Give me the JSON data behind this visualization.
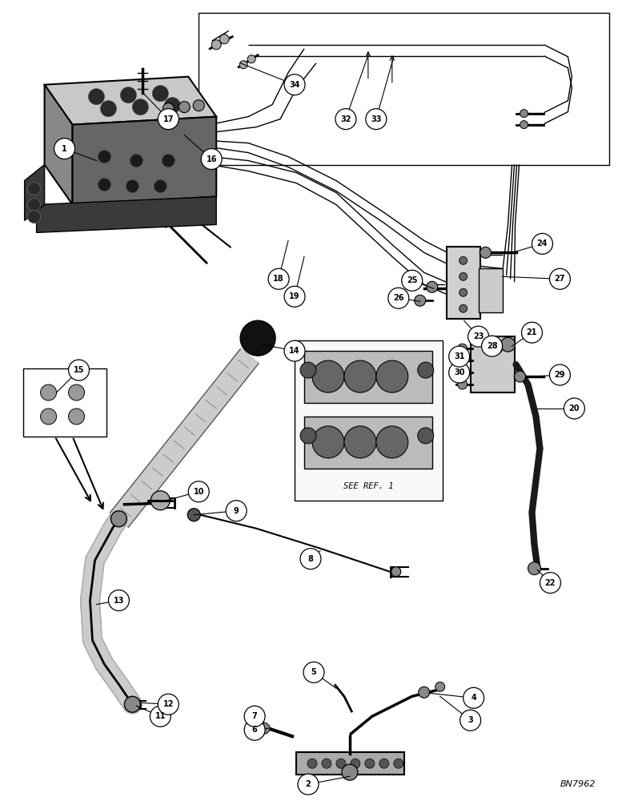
{
  "bg_color": "#ffffff",
  "line_color": "#000000",
  "fig_width": 7.72,
  "fig_height": 10.0,
  "dpi": 100,
  "watermark": "BN7962",
  "note_text": "SEE REF. 1"
}
